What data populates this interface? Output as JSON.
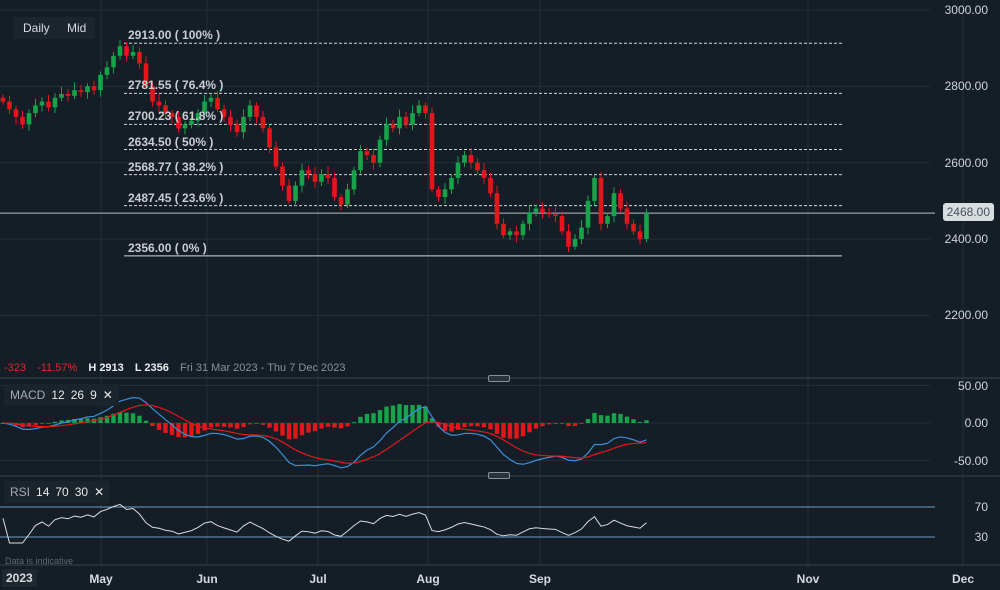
{
  "toolbar": {
    "interval": "Daily",
    "price_type": "Mid"
  },
  "price_axis": {
    "ticks": [
      "3000.00",
      "2800.00",
      "2600.00",
      "2400.00",
      "2200.00"
    ],
    "current_price": "2468.00"
  },
  "fib_levels": [
    {
      "label": "2913.00 ( 100% )",
      "value": 2913
    },
    {
      "label": "2781.55 ( 76.4% )",
      "value": 2781.55
    },
    {
      "label": "2700.23 ( 61.8% )",
      "value": 2700.23
    },
    {
      "label": "2634.50 ( 50% )",
      "value": 2634.5
    },
    {
      "label": "2568.77 ( 38.2% )",
      "value": 2568.77
    },
    {
      "label": "2487.45 ( 23.6% )",
      "value": 2487.45
    },
    {
      "label": "2356.00 ( 0% )",
      "value": 2356
    }
  ],
  "stats": {
    "change": "-323",
    "change_pct": "-11.57%",
    "high": "H 2913",
    "low": "L 2356",
    "range": "Fri 31 Mar 2023 - Thu 7 Dec 2023"
  },
  "macd": {
    "name": "MACD",
    "fast": "12",
    "slow": "26",
    "signal": "9",
    "close": "✕",
    "ticks": [
      "50.00",
      "0.00",
      "-50.00"
    ]
  },
  "rsi": {
    "name": "RSI",
    "period": "14",
    "upper": "70",
    "lower": "30",
    "close": "✕",
    "ticks": [
      "70",
      "30"
    ]
  },
  "time_axis": {
    "year": "2023",
    "months": [
      "May",
      "Jun",
      "Jul",
      "Aug",
      "Sep",
      "Nov",
      "Dec"
    ]
  },
  "note": "Data is indicative",
  "colors": {
    "up": "#17a34a",
    "down": "#e5161b",
    "macd": "#3b8fd9",
    "signal": "#e5161b",
    "rsi": "#d8dcdf",
    "bands": "#6f9fc4"
  },
  "chart_data": {
    "type": "candlestick",
    "ylim": [
      2150,
      3000
    ],
    "close": [
      2760,
      2740,
      2720,
      2700,
      2730,
      2750,
      2760,
      2745,
      2770,
      2780,
      2775,
      2790,
      2785,
      2800,
      2790,
      2830,
      2850,
      2880,
      2905,
      2880,
      2890,
      2860,
      2800,
      2760,
      2750,
      2730,
      2720,
      2690,
      2700,
      2710,
      2730,
      2760,
      2770,
      2740,
      2720,
      2700,
      2680,
      2720,
      2750,
      2720,
      2690,
      2640,
      2590,
      2540,
      2500,
      2540,
      2580,
      2570,
      2550,
      2570,
      2560,
      2510,
      2490,
      2530,
      2580,
      2630,
      2620,
      2600,
      2660,
      2700,
      2690,
      2720,
      2700,
      2730,
      2750,
      2730,
      2530,
      2510,
      2530,
      2560,
      2600,
      2620,
      2600,
      2580,
      2560,
      2520,
      2440,
      2410,
      2420,
      2410,
      2440,
      2470,
      2480,
      2470,
      2465,
      2460,
      2420,
      2380,
      2400,
      2430,
      2500,
      2560,
      2440,
      2460,
      2520,
      2480,
      2440,
      2420,
      2400,
      2468
    ]
  }
}
